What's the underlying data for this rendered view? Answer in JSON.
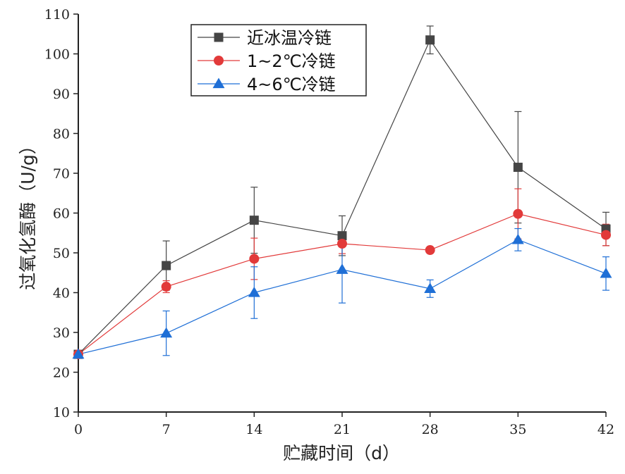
{
  "chart_data": {
    "type": "line",
    "xlabel": "贮藏时间（d）",
    "ylabel": "过氧化氢酶（U/g）",
    "x": [
      0,
      7,
      14,
      21,
      28,
      35,
      42
    ],
    "xlim": [
      0,
      42
    ],
    "ylim": [
      10,
      110
    ],
    "yticks": [
      10,
      20,
      30,
      40,
      50,
      60,
      70,
      80,
      90,
      100,
      110
    ],
    "grid": false,
    "legend_position": "top-left",
    "series": [
      {
        "name": "近冰温冷链",
        "color": "#454545",
        "marker": "square",
        "values": [
          24.5,
          46.8,
          58.2,
          54.3,
          103.5,
          71.5,
          56.0
        ],
        "errors": [
          0.6,
          6.2,
          8.3,
          5.0,
          3.5,
          14.0,
          4.2
        ]
      },
      {
        "name": "1~2℃冷链",
        "color": "#e23a3a",
        "marker": "circle",
        "values": [
          24.5,
          41.5,
          48.5,
          52.3,
          50.7,
          59.8,
          54.5
        ],
        "errors": [
          0.6,
          1.5,
          5.2,
          2.5,
          0.5,
          6.3,
          2.7
        ]
      },
      {
        "name": "4~6℃冷链",
        "color": "#1f6fd6",
        "marker": "triangle",
        "values": [
          24.5,
          29.8,
          40.0,
          45.8,
          41.0,
          53.3,
          44.8
        ],
        "errors": [
          0.6,
          5.6,
          6.5,
          8.4,
          2.2,
          2.8,
          4.2
        ]
      }
    ]
  }
}
